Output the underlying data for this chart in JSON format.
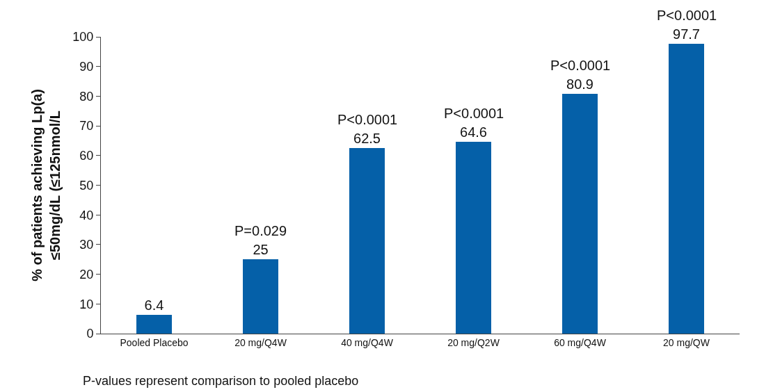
{
  "chart_data": {
    "type": "bar",
    "ylabel": "% of patients achieving Lp(a)\n≤50mg/dL (≤125nmol/L",
    "categories": [
      "Pooled Placebo",
      "20 mg/Q4W",
      "40 mg/Q4W",
      "20 mg/Q2W",
      "60 mg/Q4W",
      "20 mg/QW"
    ],
    "values": [
      6.4,
      25,
      62.5,
      64.6,
      80.9,
      97.7
    ],
    "color": "#0560a8",
    "ylim": [
      0,
      100
    ],
    "yticks": [
      0,
      10,
      20,
      30,
      40,
      50,
      60,
      70,
      80,
      90,
      100
    ],
    "grid": false,
    "data_labels": true,
    "annotations": [
      {
        "text": "P=0.029",
        "x": "20 mg/Q4W",
        "y": 25
      },
      {
        "text": "P<0.0001",
        "x": "40 mg/Q4W",
        "y": 62.5
      },
      {
        "text": "P<0.0001",
        "x": "20 mg/Q2W",
        "y": 64.6
      },
      {
        "text": "P<0.0001",
        "x": "60 mg/Q4W",
        "y": 80.9
      },
      {
        "text": "P<0.0001",
        "x": "20 mg/QW",
        "y": 97.7
      },
      "P-values represent comparison to pooled placebo"
    ]
  }
}
